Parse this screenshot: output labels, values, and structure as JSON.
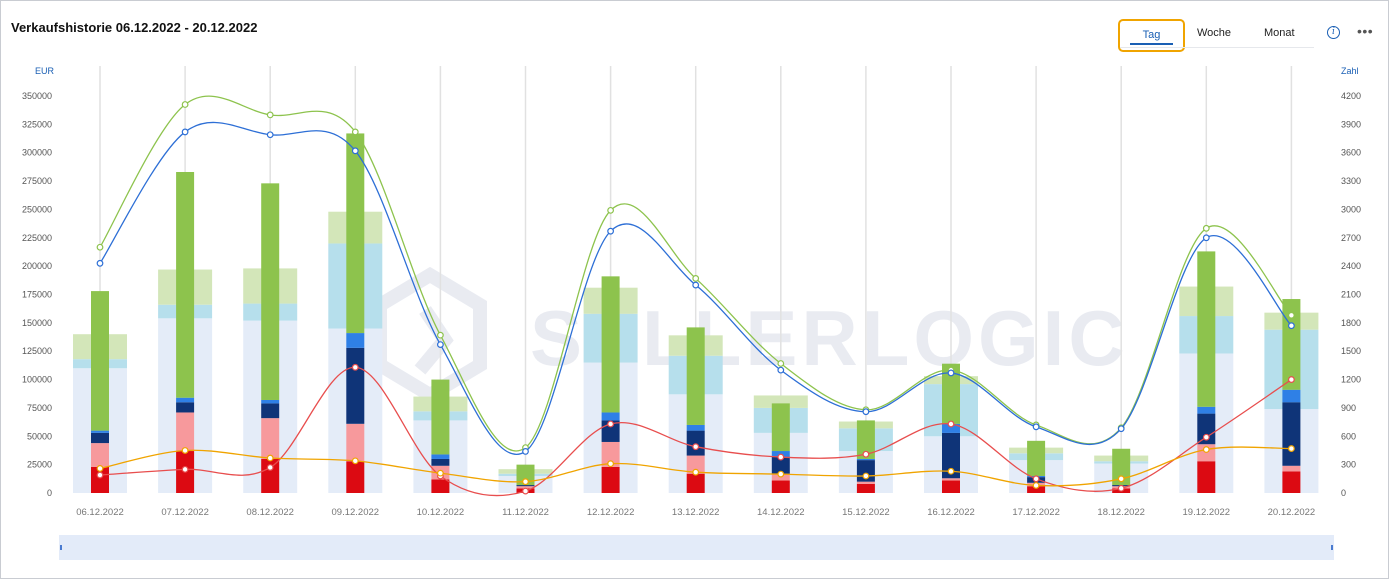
{
  "header": {
    "title": "Verkaufshistorie 06.12.2022 - 20.12.2022",
    "toggle": {
      "day": "Tag",
      "week": "Woche",
      "month": "Monat",
      "selected": "Tag"
    },
    "info_icon": "info-icon",
    "more_icon": "more-horizontal-icon"
  },
  "colors": {
    "accent": "#1a5fb4",
    "toggle_highlight": "#f0a400"
  },
  "chart_data": {
    "type": "bar",
    "y_left": {
      "unit": "EUR",
      "range": [
        0,
        350000
      ],
      "ticks": [
        "0",
        "25000",
        "50000",
        "75000",
        "100000",
        "125000",
        "150000",
        "175000",
        "200000",
        "225000",
        "250000",
        "275000",
        "300000",
        "325000",
        "350000"
      ]
    },
    "y_right": {
      "unit": "Zahl",
      "range": [
        0,
        4200
      ],
      "ticks": [
        "0",
        "300",
        "600",
        "900",
        "1200",
        "1500",
        "1800",
        "2100",
        "2400",
        "2700",
        "3000",
        "3300",
        "3600",
        "3900",
        "4200"
      ]
    },
    "categories": [
      "06.12.2022",
      "07.12.2022",
      "08.12.2022",
      "09.12.2022",
      "10.12.2022",
      "11.12.2022",
      "12.12.2022",
      "13.12.2022",
      "14.12.2022",
      "15.12.2022",
      "16.12.2022",
      "17.12.2022",
      "18.12.2022",
      "19.12.2022",
      "20.12.2022"
    ],
    "grid": "vertical",
    "wide_bar_series": [
      {
        "color": "#e4ecf8",
        "values": [
          110000,
          154000,
          152000,
          145000,
          64000,
          15000,
          115000,
          87000,
          53000,
          37000,
          50000,
          29000,
          26000,
          123000,
          74000
        ]
      },
      {
        "color": "#b6dfec",
        "values": [
          8000,
          12000,
          15000,
          75000,
          8000,
          2000,
          43000,
          34000,
          22000,
          20000,
          46000,
          6000,
          2000,
          33000,
          70000
        ]
      },
      {
        "color": "#d3e6b9",
        "values": [
          22000,
          31000,
          31000,
          28000,
          13000,
          4000,
          23000,
          18000,
          11000,
          6000,
          7000,
          5000,
          5000,
          26000,
          15000
        ]
      }
    ],
    "narrow_bar_series": [
      {
        "color": "#dc0a12",
        "values": [
          23000,
          37000,
          30000,
          28000,
          12000,
          4000,
          23000,
          17000,
          11000,
          8000,
          11000,
          6000,
          4000,
          28000,
          19000
        ]
      },
      {
        "color": "#f7999c",
        "values": [
          21000,
          34000,
          36000,
          33000,
          12000,
          2000,
          22000,
          16000,
          6000,
          2000,
          2000,
          3000,
          2000,
          15000,
          5000
        ]
      },
      {
        "color": "#0f3478",
        "values": [
          9000,
          9000,
          13000,
          67000,
          6000,
          1000,
          19000,
          22000,
          15000,
          19000,
          40000,
          5000,
          1000,
          27000,
          56000
        ]
      },
      {
        "color": "#2f80e6",
        "values": [
          2000,
          4000,
          3000,
          13000,
          4000,
          0,
          7000,
          5000,
          5000,
          1000,
          8000,
          1000,
          0,
          6000,
          11000
        ]
      },
      {
        "color": "#8dc34d",
        "values": [
          123000,
          199000,
          191000,
          176000,
          66000,
          18000,
          120000,
          86000,
          42000,
          34000,
          53000,
          31000,
          32000,
          137000,
          80000
        ]
      }
    ],
    "lines_right_axis": [
      {
        "color": "#8dc34d",
        "values": [
          2600,
          4110,
          4000,
          3820,
          1670,
          480,
          2990,
          2270,
          1370,
          880,
          1300,
          720,
          690,
          2800,
          1880
        ]
      },
      {
        "color": "#2d6fd6",
        "values": [
          2430,
          3820,
          3790,
          3620,
          1570,
          440,
          2770,
          2200,
          1300,
          860,
          1270,
          700,
          680,
          2700,
          1770
        ]
      },
      {
        "color": "#e84e4e",
        "values": [
          190,
          250,
          270,
          1330,
          180,
          20,
          730,
          490,
          380,
          410,
          730,
          150,
          50,
          590,
          1200
        ]
      },
      {
        "color": "#f0a400",
        "values": [
          260,
          450,
          370,
          340,
          210,
          120,
          310,
          220,
          200,
          180,
          230,
          80,
          150,
          460,
          470
        ]
      }
    ]
  }
}
